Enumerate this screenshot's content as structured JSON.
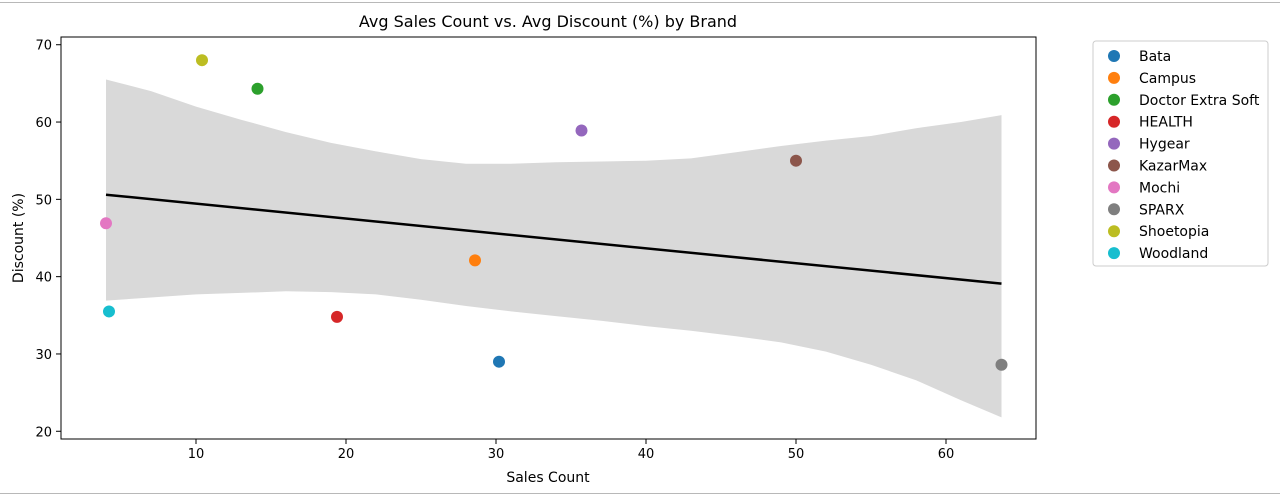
{
  "chart_data": {
    "type": "scatter",
    "title": "Avg Sales Count vs. Avg Discount (%) by Brand",
    "xlabel": "Sales Count",
    "ylabel": "Discount (%)",
    "xlim": [
      1,
      66
    ],
    "ylim": [
      19,
      71
    ],
    "xticks": [
      10,
      20,
      30,
      40,
      50,
      60
    ],
    "yticks": [
      20,
      30,
      40,
      50,
      60,
      70
    ],
    "grid": false,
    "legend_position": "outside-right",
    "series": [
      {
        "name": "Bata",
        "color": "#1f77b4",
        "x": 30.2,
        "y": 29.0
      },
      {
        "name": "Campus",
        "color": "#ff7f0e",
        "x": 28.6,
        "y": 42.1
      },
      {
        "name": "Doctor Extra Soft",
        "color": "#2ca02c",
        "x": 14.1,
        "y": 64.3
      },
      {
        "name": "HEALTH",
        "color": "#d62728",
        "x": 19.4,
        "y": 34.8
      },
      {
        "name": "Hygear",
        "color": "#9467bd",
        "x": 35.7,
        "y": 58.9
      },
      {
        "name": "KazarMax",
        "color": "#8c564b",
        "x": 50.0,
        "y": 55.0
      },
      {
        "name": "Mochi",
        "color": "#e377c2",
        "x": 4.0,
        "y": 46.9
      },
      {
        "name": "SPARX",
        "color": "#7f7f7f",
        "x": 63.7,
        "y": 28.6
      },
      {
        "name": "Shoetopia",
        "color": "#bcbd22",
        "x": 10.4,
        "y": 68.0
      },
      {
        "name": "Woodland",
        "color": "#17becf",
        "x": 4.2,
        "y": 35.5
      }
    ],
    "regression_line": {
      "color": "#000000",
      "x": [
        4.0,
        63.7
      ],
      "y": [
        50.6,
        39.1
      ]
    },
    "confidence_band": {
      "color": "#d9d9d9",
      "upper": [
        [
          4.0,
          65.5
        ],
        [
          7.0,
          64.0
        ],
        [
          10.0,
          62.0
        ],
        [
          13.0,
          60.3
        ],
        [
          16.0,
          58.7
        ],
        [
          19.0,
          57.3
        ],
        [
          22.0,
          56.2
        ],
        [
          25.0,
          55.2
        ],
        [
          28.0,
          54.6
        ],
        [
          31.0,
          54.6
        ],
        [
          34.0,
          54.8
        ],
        [
          37.0,
          54.9
        ],
        [
          40.0,
          55.0
        ],
        [
          43.0,
          55.3
        ],
        [
          46.0,
          56.1
        ],
        [
          49.0,
          56.9
        ],
        [
          52.0,
          57.6
        ],
        [
          55.0,
          58.2
        ],
        [
          58.0,
          59.2
        ],
        [
          61.0,
          60.0
        ],
        [
          63.7,
          60.9
        ]
      ],
      "lower": [
        [
          4.0,
          36.9
        ],
        [
          7.0,
          37.3
        ],
        [
          10.0,
          37.7
        ],
        [
          13.0,
          37.9
        ],
        [
          16.0,
          38.1
        ],
        [
          19.0,
          38.0
        ],
        [
          22.0,
          37.7
        ],
        [
          25.0,
          37.0
        ],
        [
          28.0,
          36.2
        ],
        [
          31.0,
          35.5
        ],
        [
          34.0,
          34.9
        ],
        [
          37.0,
          34.3
        ],
        [
          40.0,
          33.6
        ],
        [
          43.0,
          33.0
        ],
        [
          46.0,
          32.3
        ],
        [
          49.0,
          31.5
        ],
        [
          52.0,
          30.3
        ],
        [
          55.0,
          28.6
        ],
        [
          58.0,
          26.6
        ],
        [
          61.0,
          24.0
        ],
        [
          63.7,
          21.8
        ]
      ]
    }
  }
}
